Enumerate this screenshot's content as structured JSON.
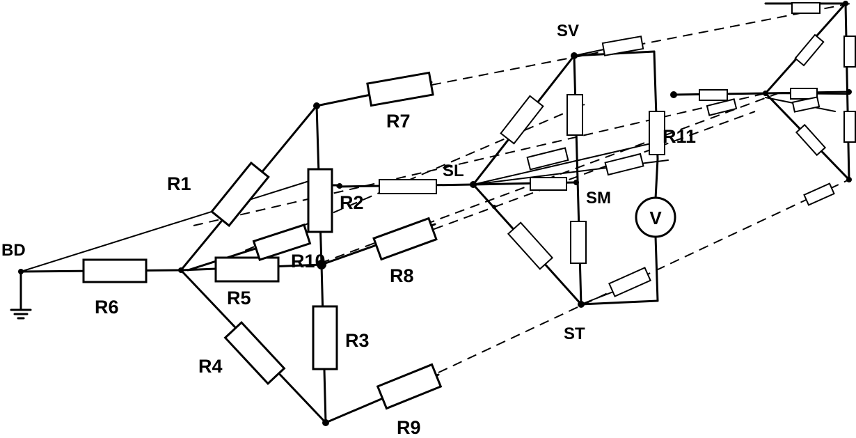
{
  "labels": {
    "bd": "BD",
    "r1": "R1",
    "r2": "R2",
    "r3": "R3",
    "r4": "R4",
    "r5": "R5",
    "r6": "R6",
    "r7": "R7",
    "r8": "R8",
    "r9": "R9",
    "r10": "R10",
    "r11": "R11",
    "sl": "SL",
    "sm": "SM",
    "sv": "SV",
    "st": "ST",
    "voltmeter": "V"
  }
}
